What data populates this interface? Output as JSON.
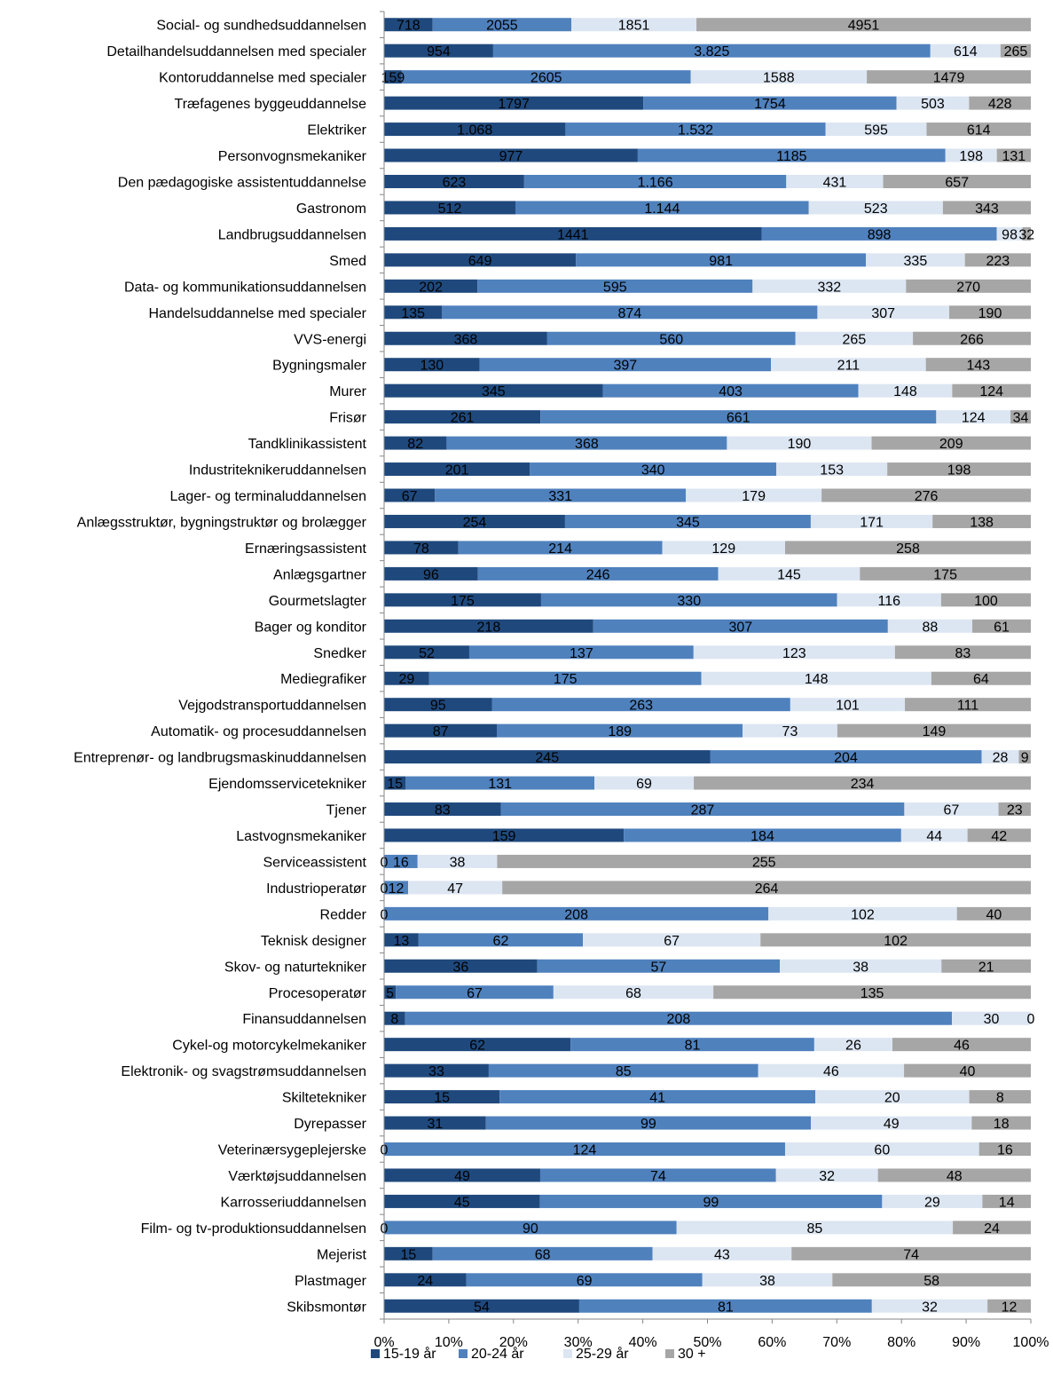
{
  "chart_data": {
    "type": "bar",
    "orientation": "horizontal",
    "stacked": "percent",
    "categories": [
      "Social- og sundhedsuddannelsen",
      "Detailhandelsuddannelsen med specialer",
      "Kontoruddannelse med specialer",
      "Træfagenes byggeuddannelse",
      "Elektriker",
      "Personvognsmekaniker",
      "Den pædagogiske assistentuddannelse",
      "Gastronom",
      "Landbrugsuddannelsen",
      "Smed",
      "Data- og kommunikationsuddannelsen",
      "Handelsuddannelse med specialer",
      "VVS-energi",
      "Bygningsmaler",
      "Murer",
      "Frisør",
      "Tandklinikassistent",
      "Industriteknikeruddannelsen",
      "Lager- og terminaluddannelsen",
      "Anlægsstruktør, bygningstruktør og brolægger",
      "Ernæringsassistent",
      "Anlægsgartner",
      "Gourmetslagter",
      "Bager og konditor",
      "Snedker",
      "Mediegrafiker",
      "Vejgodstransportuddannelsen",
      "Automatik- og procesuddannelsen",
      "Entreprenør- og landbrugsmaskinuddannelsen",
      "Ejendomsservicetekniker",
      "Tjener",
      "Lastvognsmekaniker",
      "Serviceassistent",
      "Industrioperatør",
      "Redder",
      "Teknisk designer",
      "Skov- og naturtekniker",
      "Procesoperatør",
      "Finansuddannelsen",
      "Cykel-og motorcykelmekaniker",
      "Elektronik- og svagstrømsuddannelsen",
      "Skiltetekniker",
      "Dyrepasser",
      "Veterinærsygeplejerske",
      "Værktøjsuddannelsen",
      "Karrosseriuddannelsen",
      "Film- og tv-produktionsuddannelsen",
      "Mejerist",
      "Plastmager",
      "Skibsmontør"
    ],
    "series": [
      {
        "name": "15-19 år",
        "color": "#1f497d",
        "values": [
          718,
          954,
          159,
          1797,
          1068,
          977,
          623,
          512,
          1441,
          649,
          202,
          135,
          368,
          130,
          345,
          261,
          82,
          201,
          67,
          254,
          78,
          96,
          175,
          218,
          52,
          29,
          95,
          87,
          245,
          15,
          83,
          159,
          0,
          0,
          0,
          13,
          36,
          5,
          8,
          62,
          33,
          15,
          31,
          0,
          49,
          45,
          0,
          15,
          24,
          54
        ],
        "labels": [
          "718",
          "954",
          "159",
          "1797",
          "1.068",
          "977",
          "623",
          "512",
          "1441",
          "649",
          "202",
          "135",
          "368",
          "130",
          "345",
          "261",
          "82",
          "201",
          "67",
          "254",
          "78",
          "96",
          "175",
          "218",
          "52",
          "29",
          "95",
          "87",
          "245",
          "15",
          "83",
          "159",
          "0",
          "0",
          "0",
          "13",
          "36",
          "5",
          "8",
          "62",
          "33",
          "15",
          "31",
          "0",
          "49",
          "45",
          "0",
          "15",
          "24",
          "54"
        ]
      },
      {
        "name": "20-24 år",
        "color": "#4f81bd",
        "values": [
          2055,
          3825,
          2605,
          1754,
          1532,
          1185,
          1166,
          1144,
          898,
          981,
          595,
          874,
          560,
          397,
          403,
          661,
          368,
          340,
          331,
          345,
          214,
          246,
          330,
          307,
          137,
          175,
          263,
          189,
          204,
          131,
          287,
          184,
          16,
          12,
          208,
          62,
          57,
          67,
          208,
          81,
          85,
          41,
          99,
          124,
          74,
          99,
          90,
          68,
          69,
          81
        ],
        "labels": [
          "2055",
          "3.825",
          "2605",
          "1754",
          "1.532",
          "1185",
          "1.166",
          "1.144",
          "898",
          "981",
          "595",
          "874",
          "560",
          "397",
          "403",
          "661",
          "368",
          "340",
          "331",
          "345",
          "214",
          "246",
          "330",
          "307",
          "137",
          "175",
          "263",
          "189",
          "204",
          "131",
          "287",
          "184",
          "16",
          "12",
          "208",
          "62",
          "57",
          "67",
          "208",
          "81",
          "85",
          "41",
          "99",
          "124",
          "74",
          "99",
          "90",
          "68",
          "69",
          "81"
        ]
      },
      {
        "name": "25-29 år",
        "color": "#dce6f2",
        "values": [
          1851,
          614,
          1588,
          503,
          595,
          198,
          431,
          523,
          98,
          335,
          332,
          307,
          265,
          211,
          148,
          124,
          190,
          153,
          179,
          171,
          129,
          145,
          116,
          88,
          123,
          148,
          101,
          73,
          28,
          69,
          67,
          44,
          38,
          47,
          102,
          67,
          38,
          68,
          30,
          26,
          46,
          20,
          49,
          60,
          32,
          29,
          85,
          43,
          38,
          32
        ],
        "labels": [
          "1851",
          "614",
          "1588",
          "503",
          "595",
          "198",
          "431",
          "523",
          "98",
          "335",
          "332",
          "307",
          "265",
          "211",
          "148",
          "124",
          "190",
          "153",
          "179",
          "171",
          "129",
          "145",
          "116",
          "88",
          "123",
          "148",
          "101",
          "73",
          "28",
          "69",
          "67",
          "44",
          "38",
          "47",
          "102",
          "67",
          "38",
          "68",
          "30",
          "26",
          "46",
          "20",
          "49",
          "60",
          "32",
          "29",
          "85",
          "43",
          "38",
          "32"
        ]
      },
      {
        "name": "30 +",
        "color": "#a6a6a6",
        "values": [
          4951,
          265,
          1479,
          428,
          614,
          131,
          657,
          343,
          32,
          223,
          270,
          190,
          266,
          143,
          124,
          34,
          209,
          198,
          276,
          138,
          258,
          175,
          100,
          61,
          83,
          64,
          111,
          149,
          9,
          234,
          23,
          42,
          255,
          264,
          40,
          102,
          21,
          135,
          0,
          46,
          40,
          8,
          18,
          16,
          48,
          14,
          24,
          74,
          58,
          12
        ],
        "labels": [
          "4951",
          "265",
          "1479",
          "428",
          "614",
          "131",
          "657",
          "343",
          "32",
          "223",
          "270",
          "190",
          "266",
          "143",
          "124",
          "34",
          "209",
          "198",
          "276",
          "138",
          "258",
          "175",
          "100",
          "61",
          "83",
          "64",
          "111",
          "149",
          "9",
          "234",
          "23",
          "42",
          "255",
          "264",
          "40",
          "102",
          "21",
          "135",
          "0",
          "46",
          "40",
          "8",
          "18",
          "16",
          "48",
          "14",
          "24",
          "74",
          "58",
          "12"
        ]
      }
    ],
    "x_ticks": [
      "0%",
      "10%",
      "20%",
      "30%",
      "40%",
      "50%",
      "60%",
      "70%",
      "80%",
      "90%",
      "100%"
    ],
    "xlim": [
      0,
      100
    ],
    "grid": false,
    "legend_position": "bottom"
  }
}
